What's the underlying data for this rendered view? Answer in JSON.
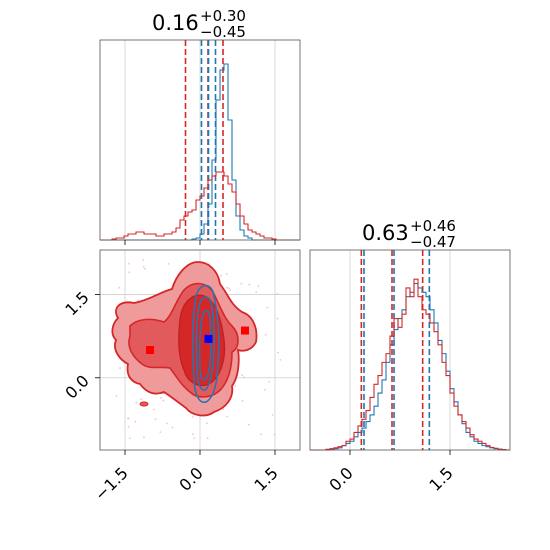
{
  "colors": {
    "red": "#d62728",
    "blue": "#1f77b4",
    "red_fill_light": "#ef9a9b",
    "red_fill_dark": "#d62728",
    "grid": "#cfcfcf",
    "axis": "#555555",
    "marker_red": "#ff0000",
    "marker_blue": "#0000ff"
  },
  "chart_data": [
    {
      "panel": "top-left",
      "type": "histogram-step",
      "title_value": "0.16",
      "title_plus": "+0.30",
      "title_minus": "−0.45",
      "xlim": [
        -2.0,
        2.0
      ],
      "xticks": [
        -1.5,
        0.0,
        1.5
      ],
      "bin_edges_start": -2.0,
      "bin_width": 0.08,
      "series": [
        {
          "name": "",
          "color": "blue",
          "values": [
            0,
            0,
            0,
            0,
            0,
            0,
            0,
            0,
            0,
            0,
            0,
            0,
            0,
            0,
            0,
            0,
            0,
            0,
            0,
            0,
            0,
            0,
            0,
            0.5,
            1,
            3,
            8,
            18,
            40,
            70,
            85,
            88,
            60,
            30,
            12,
            5,
            2,
            1,
            0,
            0,
            0,
            0,
            0,
            0,
            0,
            0,
            0,
            0,
            0,
            0
          ]
        },
        {
          "name": "",
          "color": "red",
          "values": [
            0,
            0,
            0,
            0.5,
            1,
            1,
            2,
            3,
            3,
            4,
            4,
            3,
            3,
            3,
            2,
            2,
            3,
            3,
            4,
            6,
            10,
            12,
            14,
            15,
            20,
            22,
            26,
            30,
            32,
            34,
            34,
            32,
            28,
            24,
            18,
            12,
            8,
            5,
            4,
            3,
            2,
            1,
            1,
            0.5,
            0,
            0,
            0,
            0,
            0,
            0
          ]
        }
      ],
      "ymax": 92,
      "quantile_lines": {
        "red": [
          -0.29,
          0.16,
          0.46
        ],
        "blue": [
          0.03,
          0.17,
          0.31
        ]
      }
    },
    {
      "panel": "bottom-right",
      "type": "histogram-step",
      "title_value": "0.63",
      "title_plus": "+0.46",
      "title_minus": "−0.47",
      "xlim": [
        -0.6,
        2.4
      ],
      "xticks": [
        0.0,
        1.5
      ],
      "bin_edges_start": -0.6,
      "bin_width": 0.06,
      "series": [
        {
          "name": "",
          "color": "blue",
          "values": [
            0,
            0,
            0,
            0,
            0,
            0.3,
            0.6,
            1,
            2,
            3,
            4,
            6,
            8,
            10,
            13,
            16,
            20,
            26,
            32,
            40,
            48,
            55,
            60,
            64,
            70,
            72,
            76,
            74,
            72,
            70,
            64,
            58,
            50,
            44,
            36,
            28,
            22,
            16,
            12,
            8,
            6,
            4,
            3,
            2,
            1.5,
            1,
            0.6,
            0.3,
            0,
            0
          ]
        },
        {
          "name": "",
          "color": "red",
          "values": [
            0,
            0,
            0,
            0,
            0.3,
            0.6,
            1,
            1.5,
            2,
            4,
            5,
            8,
            11,
            14,
            18,
            24,
            30,
            34,
            40,
            44,
            52,
            60,
            56,
            62,
            74,
            70,
            78,
            70,
            64,
            62,
            58,
            54,
            48,
            40,
            34,
            26,
            20,
            16,
            13,
            10,
            7,
            5,
            4,
            3,
            2,
            1.2,
            0.8,
            0.4,
            0.2,
            0
          ]
        }
      ],
      "ymax": 84,
      "quantile_lines": {
        "red": [
          0.17,
          0.63,
          1.09
        ],
        "blue": [
          0.21,
          0.66,
          1.19
        ]
      }
    },
    {
      "panel": "bottom-left",
      "type": "2d-density-contour",
      "xlim": [
        -2.0,
        2.0
      ],
      "ylim": [
        -1.3,
        2.3
      ],
      "xticks": [
        -1.5,
        0.0,
        1.5
      ],
      "yticks": [
        0.0,
        1.5
      ],
      "markers": [
        {
          "shape": "square",
          "color": "marker_red",
          "x": -1.0,
          "y": 0.5
        },
        {
          "shape": "square",
          "color": "marker_red",
          "x": 0.9,
          "y": 0.85
        },
        {
          "shape": "square",
          "color": "marker_blue",
          "x": 0.17,
          "y": 0.7
        }
      ]
    }
  ]
}
